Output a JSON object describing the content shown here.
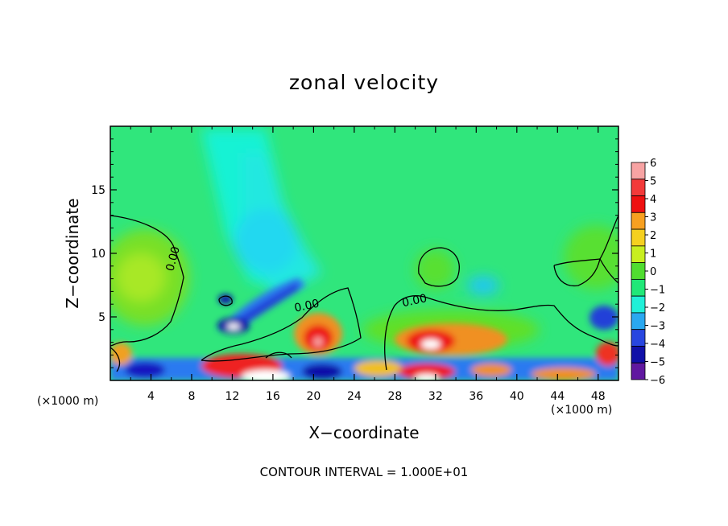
{
  "chart_data": {
    "type": "heatmap",
    "title": "zonal velocity",
    "xlabel": "X−coordinate",
    "ylabel": "Z−coordinate",
    "x_unit_left": "(×1000 m)",
    "x_unit_right": "(×1000 m)",
    "xlim": [
      0,
      50
    ],
    "ylim": [
      0,
      20
    ],
    "x_ticks": [
      4,
      8,
      12,
      16,
      20,
      24,
      28,
      32,
      36,
      40,
      44,
      48
    ],
    "x_tick_labels": [
      "4",
      "8",
      "12",
      "16",
      "20",
      "24",
      "28",
      "32",
      "36",
      "40",
      "44",
      "48"
    ],
    "y_ticks": [
      5,
      10,
      15
    ],
    "y_tick_labels": [
      "5",
      "10",
      "15"
    ],
    "colorbar": {
      "levels": [
        6,
        5,
        4,
        3,
        2,
        1,
        0,
        -1,
        -2,
        -3,
        -4,
        -5,
        -6
      ],
      "labels": [
        "6",
        "5",
        "4",
        "3",
        "2",
        "1",
        "0",
        "−1",
        "−2",
        "−3",
        "−4",
        "−5",
        "−6"
      ],
      "colors": [
        "#f7a3a3",
        "#f23a3a",
        "#ee1010",
        "#f7a020",
        "#f5d020",
        "#c8ee20",
        "#50dd30",
        "#20e878",
        "#20f0d8",
        "#2aa8f0",
        "#2846e0",
        "#1010a8",
        "#6018a0"
      ]
    },
    "contour_labels": [
      {
        "text": "0.00",
        "x": 6.5,
        "y": 9.5
      },
      {
        "text": "0.00",
        "x": 19.4,
        "y": 5.6
      },
      {
        "text": "0.00",
        "x": 30.0,
        "y": 6.0
      }
    ],
    "contour_interval": "CONTOUR INTERVAL = 1.000E+01"
  }
}
